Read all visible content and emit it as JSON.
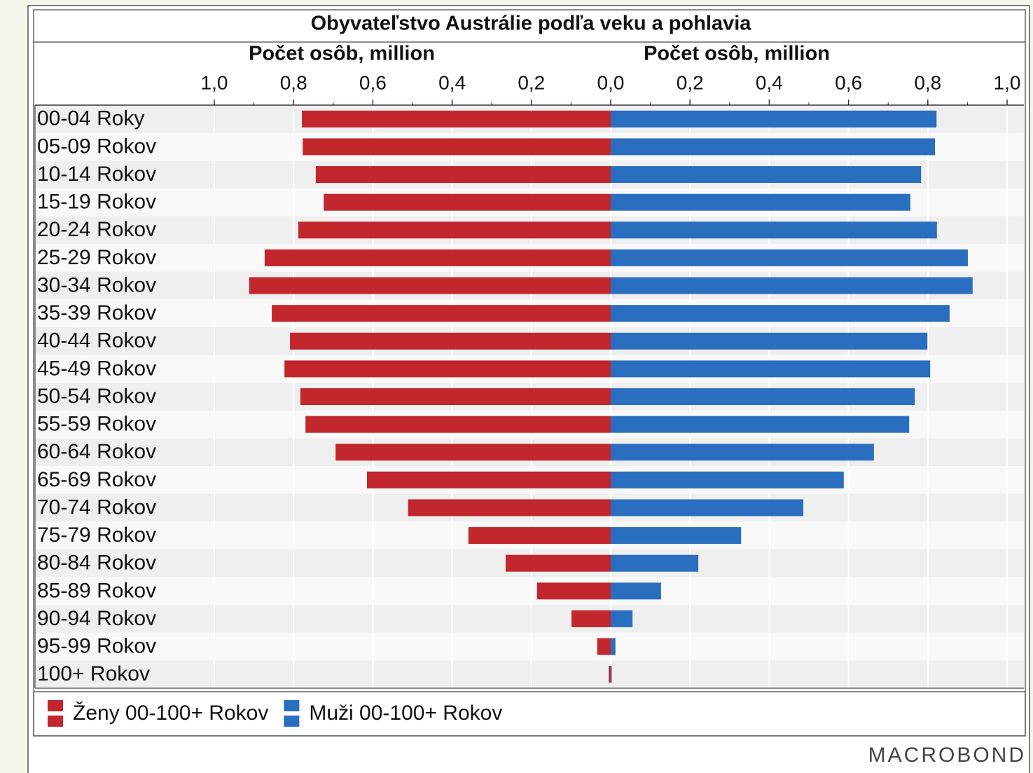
{
  "chart_data": {
    "type": "pyramid",
    "title": "Obyvateľstvo Austrálie podľa veku a pohlavia",
    "left_axis": {
      "label": "Počet osôb, million",
      "xlim": [
        1,
        0
      ],
      "xticks": [
        {
          "value": 1,
          "label": "1,0"
        },
        {
          "value": 0.8,
          "label": "0,8"
        },
        {
          "value": 0.6,
          "label": "0,6"
        },
        {
          "value": 0.4,
          "label": "0,4"
        },
        {
          "value": 0.2,
          "label": "0,2"
        }
      ]
    },
    "right_axis": {
      "label": "Počet osôb, million",
      "xlim": [
        0,
        1
      ],
      "xticks": [
        {
          "value": 0,
          "label": "0,0"
        },
        {
          "value": 0.2,
          "label": "0,2"
        },
        {
          "value": 0.4,
          "label": "0,4"
        },
        {
          "value": 0.6,
          "label": "0,6"
        },
        {
          "value": 0.8,
          "label": "0,8"
        },
        {
          "value": 1,
          "label": "1,0"
        }
      ]
    },
    "categories": [
      "00-04 Roky",
      "05-09 Rokov",
      "10-14 Rokov",
      "15-19 Rokov",
      "20-24 Rokov",
      "25-29 Rokov",
      "30-34 Rokov",
      "35-39 Rokov",
      "40-44 Rokov",
      "45-49 Rokov",
      "50-54 Rokov",
      "55-59 Rokov",
      "60-64 Rokov",
      "65-69 Rokov",
      "70-74 Rokov",
      "75-79 Rokov",
      "80-84 Rokov",
      "85-89 Rokov",
      "90-94 Rokov",
      "95-99 Rokov",
      "100+ Rokov"
    ],
    "series": [
      {
        "name": "Ženy 00-100+ Rokov",
        "color": "#c1272d",
        "side": "left",
        "values": [
          0.779,
          0.777,
          0.744,
          0.724,
          0.788,
          0.873,
          0.912,
          0.855,
          0.809,
          0.823,
          0.783,
          0.77,
          0.694,
          0.615,
          0.511,
          0.359,
          0.265,
          0.186,
          0.099,
          0.034,
          0.005
        ]
      },
      {
        "name": "Muži 00-100+ Rokov",
        "color": "#2a6ebf",
        "side": "right",
        "values": [
          0.822,
          0.818,
          0.783,
          0.756,
          0.823,
          0.901,
          0.913,
          0.855,
          0.799,
          0.806,
          0.767,
          0.753,
          0.664,
          0.588,
          0.486,
          0.329,
          0.221,
          0.127,
          0.055,
          0.012,
          0.001
        ]
      }
    ],
    "grid": true,
    "legend": "bottom-left",
    "source": "MACROBOND"
  }
}
